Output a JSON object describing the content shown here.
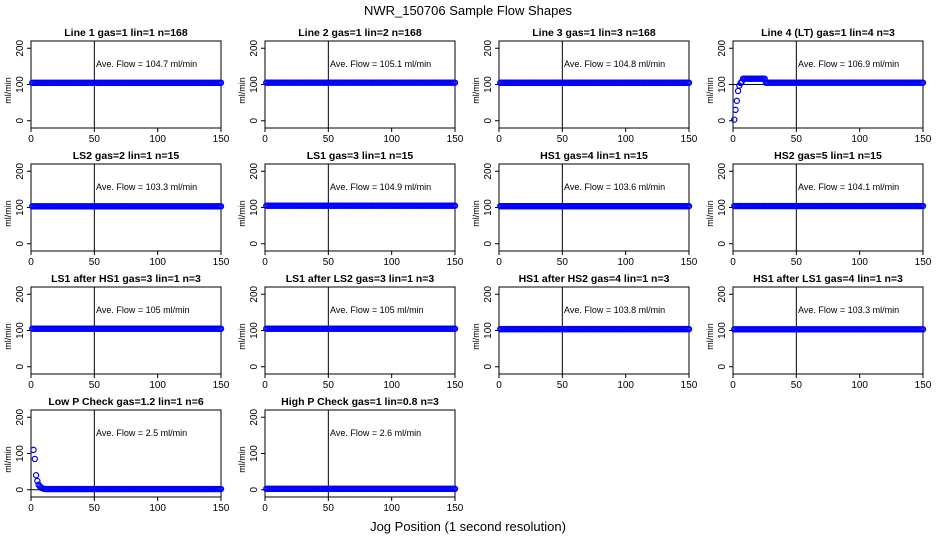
{
  "figure": {
    "title": "NWR_150706  Sample Flow Shapes",
    "xlabel": "Jog Position (1 second resolution)"
  },
  "chart_data": [
    {
      "type": "scatter",
      "title": "Line 1 gas=1 lin=1 n=168",
      "annotation": "Ave. Flow = 104.7  ml/min",
      "ylabel": "ml/min",
      "xlim": [
        0,
        150
      ],
      "ylim": [
        -20,
        220
      ],
      "xticks": [
        0,
        50,
        100,
        150
      ],
      "yticks": [
        0,
        100,
        200
      ],
      "shape": "flat",
      "flow": 104.7,
      "color": "#0000ff",
      "vline": 50,
      "hline": 100
    },
    {
      "type": "scatter",
      "title": "Line 2 gas=1 lin=2 n=168",
      "annotation": "Ave. Flow = 105.1  ml/min",
      "ylabel": "ml/min",
      "xlim": [
        0,
        150
      ],
      "ylim": [
        -20,
        220
      ],
      "xticks": [
        0,
        50,
        100,
        150
      ],
      "yticks": [
        0,
        100,
        200
      ],
      "shape": "flat",
      "flow": 105.1,
      "color": "#0000ff",
      "vline": 50,
      "hline": 100
    },
    {
      "type": "scatter",
      "title": "Line 3 gas=1 lin=3 n=168",
      "annotation": "Ave. Flow = 104.8  ml/min",
      "ylabel": "ml/min",
      "xlim": [
        0,
        150
      ],
      "ylim": [
        -20,
        220
      ],
      "xticks": [
        0,
        50,
        100,
        150
      ],
      "yticks": [
        0,
        100,
        200
      ],
      "shape": "flat",
      "flow": 104.8,
      "color": "#0000ff",
      "vline": 50,
      "hline": 100
    },
    {
      "type": "scatter",
      "title": "Line 4 (LT) gas=1 lin=4 n=3",
      "annotation": "Ave. Flow = 106.9  ml/min",
      "ylabel": "ml/min",
      "xlim": [
        0,
        150
      ],
      "ylim": [
        -20,
        220
      ],
      "xticks": [
        0,
        50,
        100,
        150
      ],
      "yticks": [
        0,
        100,
        200
      ],
      "shape": "rise",
      "flow": 106.9,
      "color": "#0000ff",
      "vline": 50,
      "hline": 100
    },
    {
      "type": "scatter",
      "title": "LS2 gas=2 lin=1 n=15",
      "annotation": "Ave. Flow = 103.3  ml/min",
      "ylabel": "ml/min",
      "xlim": [
        0,
        150
      ],
      "ylim": [
        -20,
        220
      ],
      "xticks": [
        0,
        50,
        100,
        150
      ],
      "yticks": [
        0,
        100,
        200
      ],
      "shape": "flat",
      "flow": 103.3,
      "color": "#0000ff",
      "vline": 50,
      "hline": 100
    },
    {
      "type": "scatter",
      "title": "LS1 gas=3 lin=1 n=15",
      "annotation": "Ave. Flow = 104.9  ml/min",
      "ylabel": "ml/min",
      "xlim": [
        0,
        150
      ],
      "ylim": [
        -20,
        220
      ],
      "xticks": [
        0,
        50,
        100,
        150
      ],
      "yticks": [
        0,
        100,
        200
      ],
      "shape": "flat",
      "flow": 104.9,
      "color": "#0000ff",
      "vline": 50,
      "hline": 100
    },
    {
      "type": "scatter",
      "title": "HS1 gas=4 lin=1 n=15",
      "annotation": "Ave. Flow = 103.6  ml/min",
      "ylabel": "ml/min",
      "xlim": [
        0,
        150
      ],
      "ylim": [
        -20,
        220
      ],
      "xticks": [
        0,
        50,
        100,
        150
      ],
      "yticks": [
        0,
        100,
        200
      ],
      "shape": "flat",
      "flow": 103.6,
      "color": "#0000ff",
      "vline": 50,
      "hline": 100
    },
    {
      "type": "scatter",
      "title": "HS2 gas=5 lin=1 n=15",
      "annotation": "Ave. Flow = 104.1  ml/min",
      "ylabel": "ml/min",
      "xlim": [
        0,
        150
      ],
      "ylim": [
        -20,
        220
      ],
      "xticks": [
        0,
        50,
        100,
        150
      ],
      "yticks": [
        0,
        100,
        200
      ],
      "shape": "flat",
      "flow": 104.1,
      "color": "#0000ff",
      "vline": 50,
      "hline": 100
    },
    {
      "type": "scatter",
      "title": "LS1 after HS1 gas=3 lin=1 n=3",
      "annotation": "Ave. Flow = 105  ml/min",
      "ylabel": "ml/min",
      "xlim": [
        0,
        150
      ],
      "ylim": [
        -20,
        220
      ],
      "xticks": [
        0,
        50,
        100,
        150
      ],
      "yticks": [
        0,
        100,
        200
      ],
      "shape": "flat",
      "flow": 105,
      "color": "#0000ff",
      "vline": 50,
      "hline": 100
    },
    {
      "type": "scatter",
      "title": "LS1 after LS2 gas=3 lin=1 n=3",
      "annotation": "Ave. Flow = 105  ml/min",
      "ylabel": "ml/min",
      "xlim": [
        0,
        150
      ],
      "ylim": [
        -20,
        220
      ],
      "xticks": [
        0,
        50,
        100,
        150
      ],
      "yticks": [
        0,
        100,
        200
      ],
      "shape": "flat",
      "flow": 105,
      "color": "#0000ff",
      "vline": 50,
      "hline": 100
    },
    {
      "type": "scatter",
      "title": "HS1 after HS2 gas=4 lin=1 n=3",
      "annotation": "Ave. Flow = 103.8  ml/min",
      "ylabel": "ml/min",
      "xlim": [
        0,
        150
      ],
      "ylim": [
        -20,
        220
      ],
      "xticks": [
        0,
        50,
        100,
        150
      ],
      "yticks": [
        0,
        100,
        200
      ],
      "shape": "flat",
      "flow": 103.8,
      "color": "#0000ff",
      "vline": 50,
      "hline": 100
    },
    {
      "type": "scatter",
      "title": "HS1 after LS1 gas=4 lin=1 n=3",
      "annotation": "Ave. Flow = 103.3  ml/min",
      "ylabel": "ml/min",
      "xlim": [
        0,
        150
      ],
      "ylim": [
        -20,
        220
      ],
      "xticks": [
        0,
        50,
        100,
        150
      ],
      "yticks": [
        0,
        100,
        200
      ],
      "shape": "flat",
      "flow": 103.3,
      "color": "#0000ff",
      "vline": 50,
      "hline": 100
    },
    {
      "type": "scatter",
      "title": "Low P Check gas=1.2 lin=1 n=6",
      "annotation": "Ave. Flow =  2.5  ml/min",
      "ylabel": "ml/min",
      "xlim": [
        0,
        150
      ],
      "ylim": [
        -20,
        220
      ],
      "xticks": [
        0,
        50,
        100,
        150
      ],
      "yticks": [
        0,
        100,
        200
      ],
      "shape": "decay",
      "flow": 2.5,
      "color": "#0000ff",
      "vline": 50,
      "hline": 0
    },
    {
      "type": "scatter",
      "title": "High P Check gas=1 lin=0.8 n=3",
      "annotation": "Ave. Flow =  2.6  ml/min",
      "ylabel": "ml/min",
      "xlim": [
        0,
        150
      ],
      "ylim": [
        -20,
        220
      ],
      "xticks": [
        0,
        50,
        100,
        150
      ],
      "yticks": [
        0,
        100,
        200
      ],
      "shape": "flat",
      "flow": 2.6,
      "color": "#0000ff",
      "vline": 50,
      "hline": 0
    }
  ]
}
